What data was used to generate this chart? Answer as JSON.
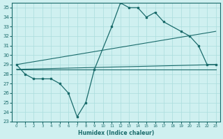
{
  "xlabel": "Humidex (Indice chaleur)",
  "xlim": [
    -0.5,
    23.5
  ],
  "ylim": [
    23,
    35.5
  ],
  "yticks": [
    23,
    24,
    25,
    26,
    27,
    28,
    29,
    30,
    31,
    32,
    33,
    34,
    35
  ],
  "xticks": [
    0,
    1,
    2,
    3,
    4,
    5,
    6,
    7,
    8,
    9,
    10,
    11,
    12,
    13,
    14,
    15,
    16,
    17,
    18,
    19,
    20,
    21,
    22,
    23
  ],
  "bg_color": "#cff0f0",
  "grid_color": "#aadddd",
  "line_color": "#1a6b6b",
  "main_curve": {
    "x": [
      0,
      1,
      2,
      3,
      4,
      5,
      6,
      7,
      8,
      9,
      11,
      12,
      13,
      14,
      15,
      16,
      17,
      19,
      20,
      21,
      22,
      23
    ],
    "y": [
      29.0,
      28.0,
      27.5,
      27.5,
      27.5,
      27.0,
      26.0,
      23.5,
      25.0,
      28.5,
      33.0,
      35.5,
      35.0,
      35.0,
      34.0,
      34.5,
      33.5,
      32.5,
      32.0,
      31.0,
      29.0,
      29.0
    ]
  },
  "flat_line": {
    "x": [
      0,
      23
    ],
    "y": [
      28.5,
      28.5
    ]
  },
  "trend_low": {
    "x": [
      0,
      23
    ],
    "y": [
      28.5,
      29.0
    ]
  },
  "trend_high": {
    "x": [
      0,
      23
    ],
    "y": [
      29.0,
      32.5
    ]
  }
}
